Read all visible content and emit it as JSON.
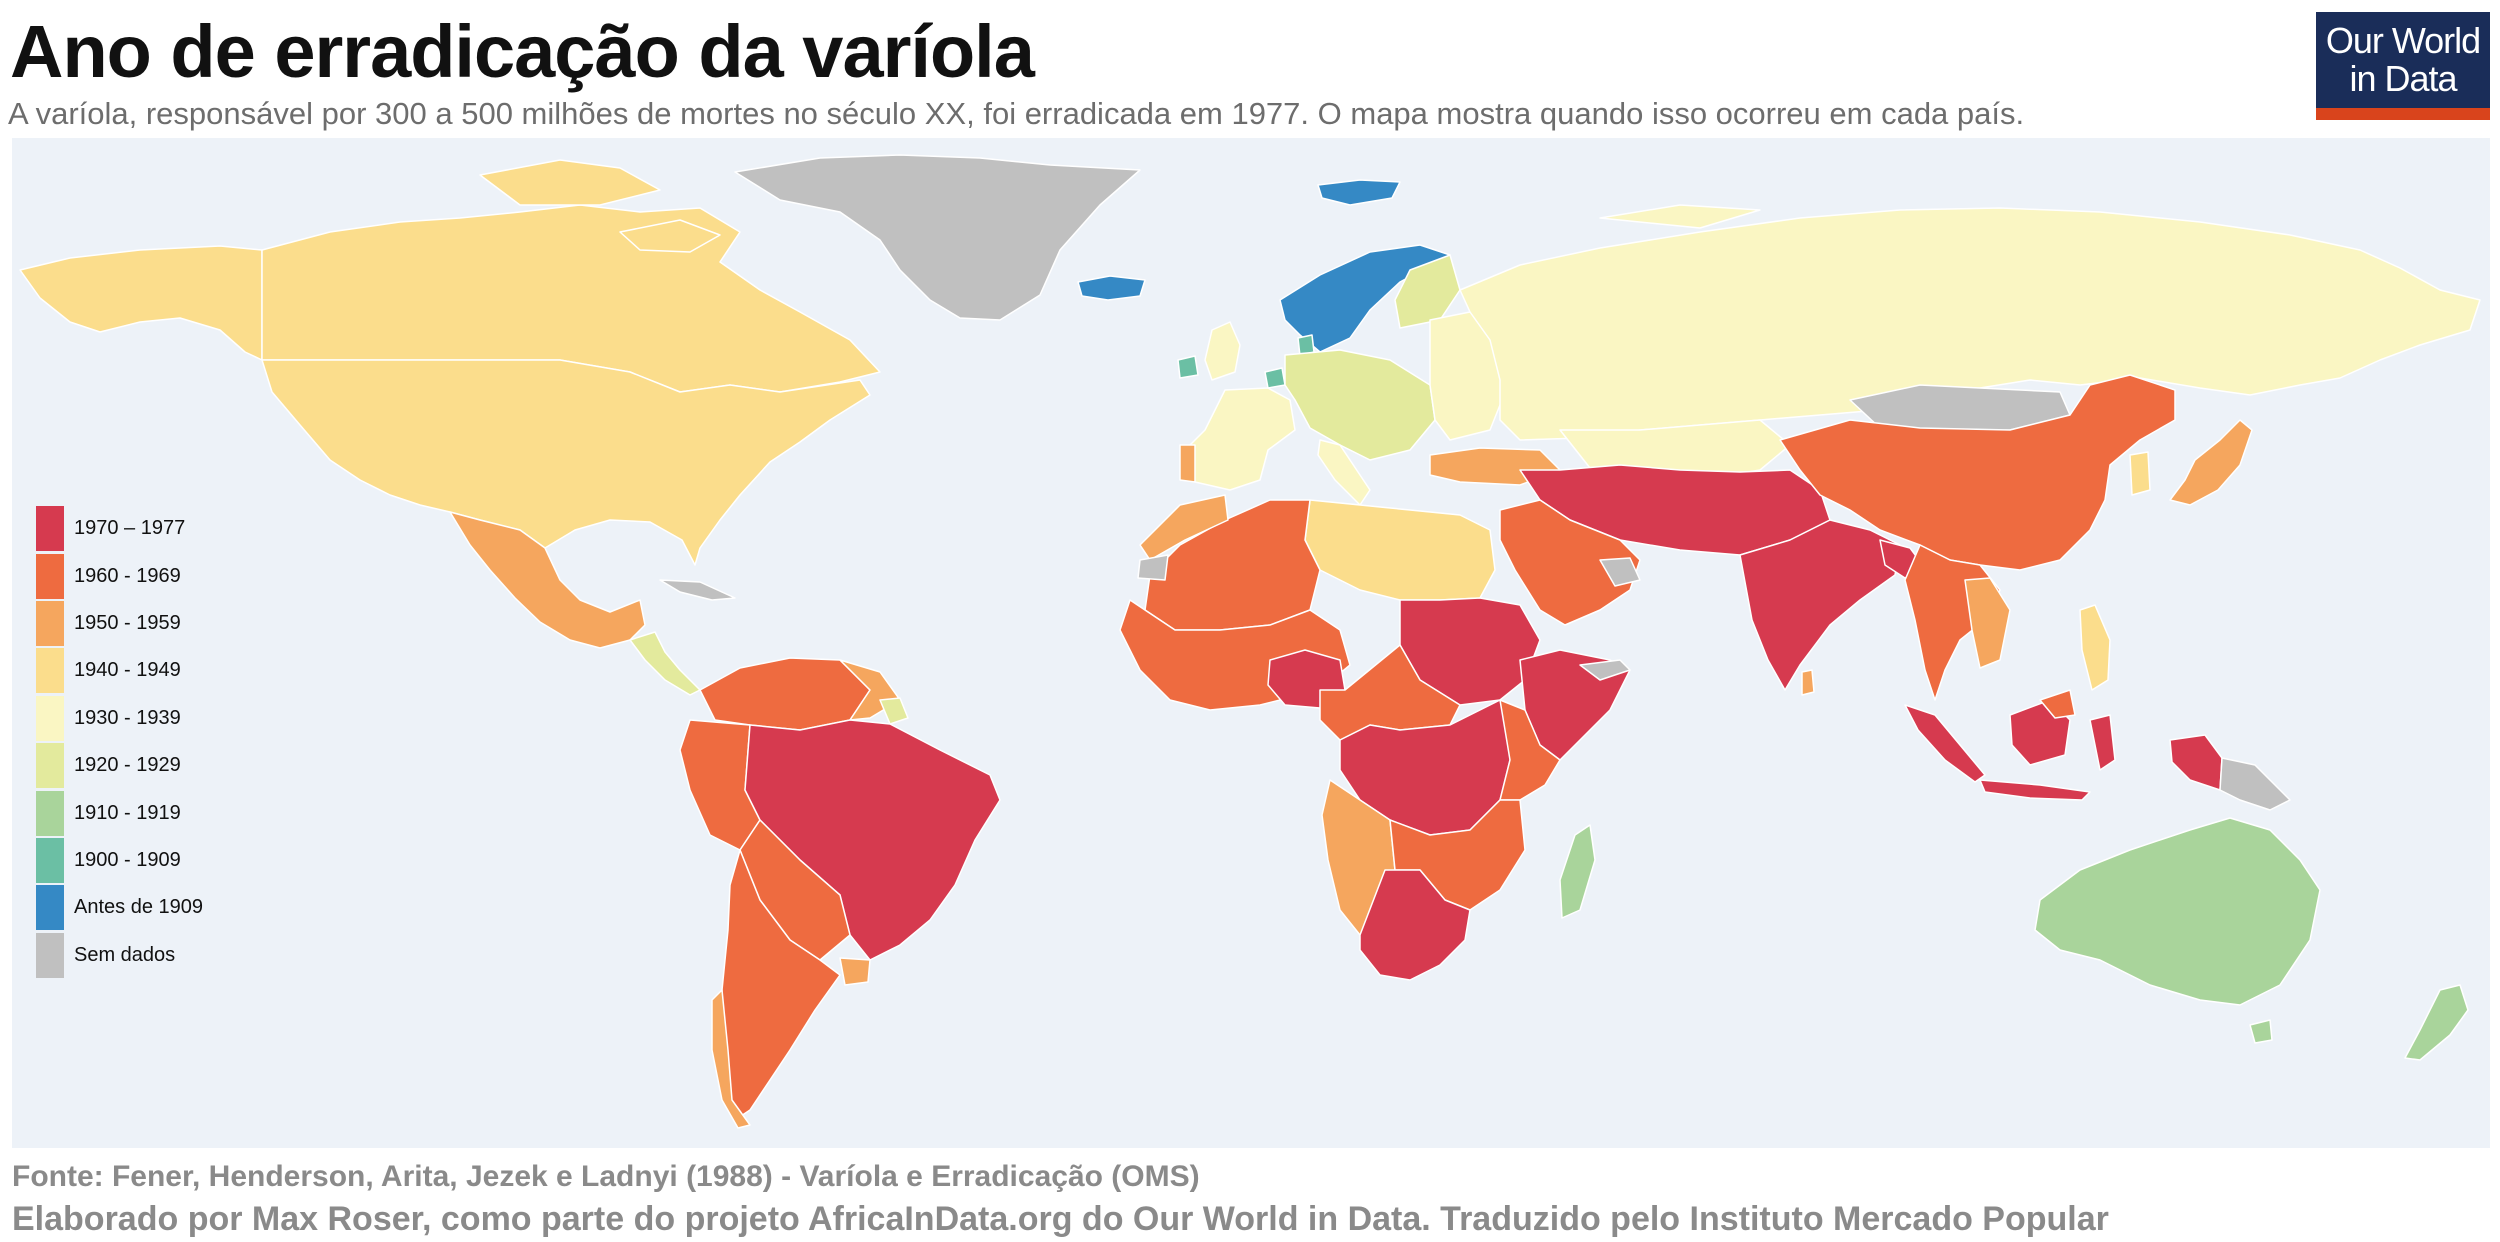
{
  "header": {
    "title": "Ano de erradicação da varíola",
    "subtitle": "A varíola, responsável por 300 a 500 milhões de mortes no século XX, foi erradicada em 1977. O mapa mostra quando isso ocorreu em cada país."
  },
  "logo": {
    "line1": "Our World",
    "line2": "in Data",
    "bg_color": "#1a2d59",
    "accent_color": "#d9441c"
  },
  "legend": {
    "items": [
      {
        "label": "1970 – 1977",
        "color": "#d63a4f"
      },
      {
        "label": "1960 - 1969",
        "color": "#ee6b40"
      },
      {
        "label": "1950 - 1959",
        "color": "#f5a65e"
      },
      {
        "label": "1940 - 1949",
        "color": "#fbdd8c"
      },
      {
        "label": "1930 - 1939",
        "color": "#faf6c3"
      },
      {
        "label": "1920 - 1929",
        "color": "#e3ea9d"
      },
      {
        "label": "1910 - 1919",
        "color": "#a9d49b"
      },
      {
        "label": "1900 - 1909",
        "color": "#6bbfa4"
      },
      {
        "label": "Antes de 1909",
        "color": "#3589c5"
      },
      {
        "label": "Sem dados",
        "color": "#c0c0c0"
      }
    ]
  },
  "map": {
    "ocean_color": "#edf2f8"
  },
  "footer": {
    "source": "Fonte: Fener, Henderson, Arita, Jezek e Ladnyi (1988) - Varíola e Erradicação (OMS)",
    "credit": "Elaborado por Max Roser, como parte do projeto AfricaInData.org do Our World in Data. Traduzido pelo Instituto Mercado Popular"
  }
}
